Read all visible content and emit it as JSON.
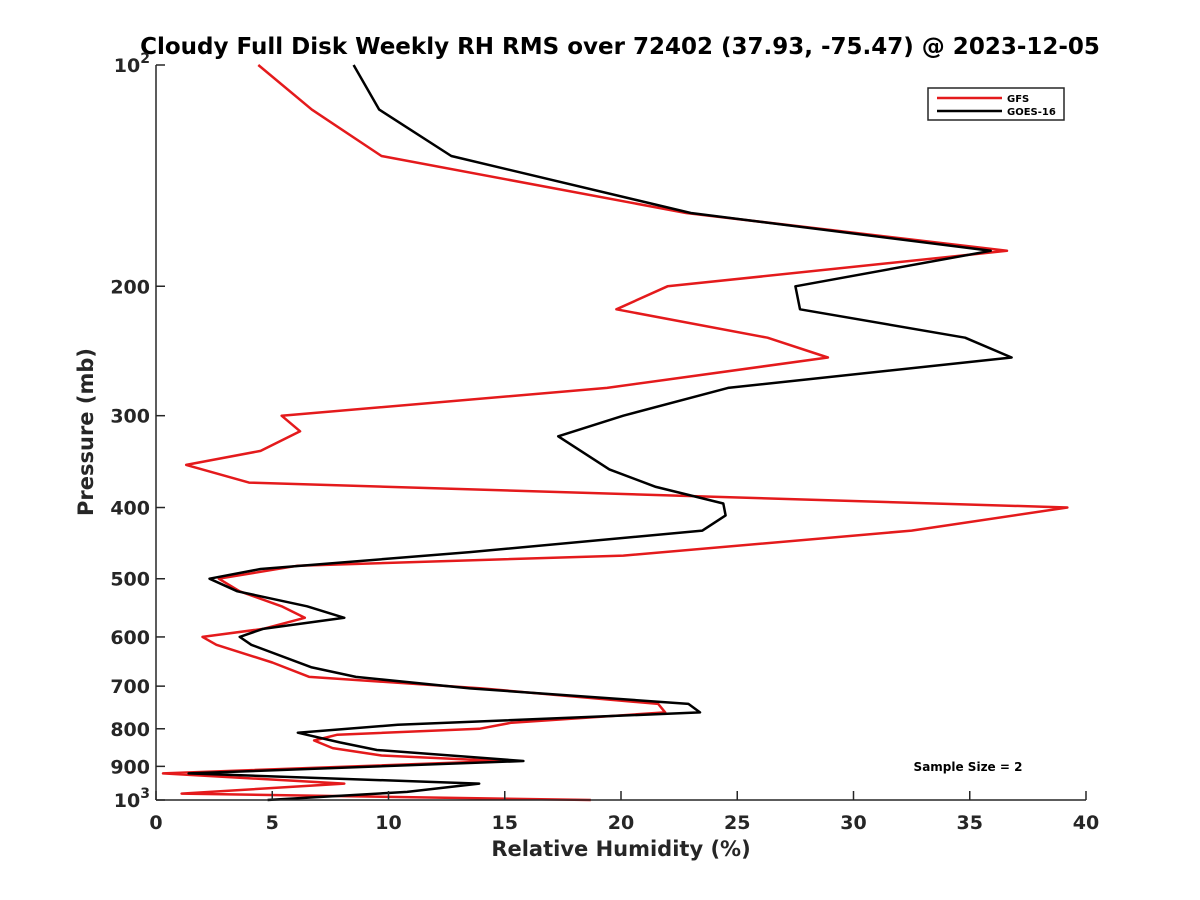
{
  "chart_data": {
    "type": "line",
    "title": "Cloudy Full Disk Weekly RH RMS over 72402 (37.93, -75.47) @ 2023-12-05",
    "xlabel": "Relative Humidity (%)",
    "ylabel": "Pressure (mb)",
    "xlim": [
      0,
      40
    ],
    "ylim": [
      100,
      1000
    ],
    "yscale": "log",
    "y_reversed": true,
    "x_ticks": [
      0,
      5,
      10,
      15,
      20,
      25,
      30,
      35,
      40
    ],
    "x_tick_labels": [
      "0",
      "5",
      "10",
      "15",
      "20",
      "25",
      "30",
      "35",
      "40"
    ],
    "y_ticks": [
      100,
      200,
      300,
      400,
      500,
      600,
      700,
      800,
      900,
      1000
    ],
    "y_tick_labels": [
      {
        "base": "10",
        "exp": "2"
      },
      {
        "base": "200"
      },
      {
        "base": "300"
      },
      {
        "base": "400"
      },
      {
        "base": "500"
      },
      {
        "base": "600"
      },
      {
        "base": "700"
      },
      {
        "base": "800"
      },
      {
        "base": "900"
      },
      {
        "base": "10",
        "exp": "3"
      }
    ],
    "grid": false,
    "legend_position": "top-right",
    "annotation": "Sample Size = 2",
    "series": [
      {
        "name": "GFS",
        "color": "#e41a1c",
        "points": [
          [
            4.4,
            100
          ],
          [
            6.7,
            115
          ],
          [
            9.7,
            133
          ],
          [
            22.8,
            159
          ],
          [
            36.6,
            179
          ],
          [
            22.0,
            200
          ],
          [
            19.8,
            215
          ],
          [
            26.3,
            235
          ],
          [
            28.9,
            250
          ],
          [
            19.4,
            275
          ],
          [
            5.4,
            300
          ],
          [
            6.2,
            315
          ],
          [
            4.5,
            335
          ],
          [
            1.3,
            350
          ],
          [
            4.0,
            370
          ],
          [
            39.2,
            400
          ],
          [
            32.5,
            430
          ],
          [
            20.1,
            465
          ],
          [
            6.1,
            480
          ],
          [
            2.7,
            500
          ],
          [
            3.6,
            520
          ],
          [
            5.4,
            545
          ],
          [
            6.4,
            565
          ],
          [
            4.6,
            585
          ],
          [
            2.0,
            600
          ],
          [
            2.6,
            615
          ],
          [
            5.0,
            650
          ],
          [
            6.6,
            680
          ],
          [
            14.0,
            705
          ],
          [
            21.6,
            740
          ],
          [
            21.9,
            760
          ],
          [
            15.3,
            785
          ],
          [
            13.9,
            800
          ],
          [
            7.8,
            815
          ],
          [
            6.8,
            830
          ],
          [
            7.6,
            850
          ],
          [
            9.7,
            870
          ],
          [
            14.8,
            885
          ],
          [
            0.3,
            920
          ],
          [
            8.1,
            950
          ],
          [
            1.1,
            980
          ],
          [
            18.7,
            1000
          ]
        ]
      },
      {
        "name": "GOES-16",
        "color": "#000000",
        "points": [
          [
            8.5,
            100
          ],
          [
            9.6,
            115
          ],
          [
            12.7,
            133
          ],
          [
            23.0,
            159
          ],
          [
            35.9,
            179
          ],
          [
            27.5,
            200
          ],
          [
            27.7,
            215
          ],
          [
            34.8,
            235
          ],
          [
            36.8,
            250
          ],
          [
            24.6,
            275
          ],
          [
            20.1,
            300
          ],
          [
            17.3,
            320
          ],
          [
            19.5,
            355
          ],
          [
            21.5,
            375
          ],
          [
            24.4,
            395
          ],
          [
            24.5,
            410
          ],
          [
            23.5,
            430
          ],
          [
            13.5,
            460
          ],
          [
            4.5,
            485
          ],
          [
            2.3,
            500
          ],
          [
            3.5,
            520
          ],
          [
            6.5,
            545
          ],
          [
            8.1,
            565
          ],
          [
            4.6,
            585
          ],
          [
            3.6,
            600
          ],
          [
            4.1,
            615
          ],
          [
            6.7,
            660
          ],
          [
            8.6,
            680
          ],
          [
            13.5,
            705
          ],
          [
            22.9,
            740
          ],
          [
            23.4,
            760
          ],
          [
            10.4,
            790
          ],
          [
            6.1,
            810
          ],
          [
            7.9,
            835
          ],
          [
            9.5,
            855
          ],
          [
            15.8,
            885
          ],
          [
            1.4,
            920
          ],
          [
            13.9,
            950
          ],
          [
            10.8,
            975
          ],
          [
            4.8,
            1000
          ]
        ]
      }
    ]
  }
}
